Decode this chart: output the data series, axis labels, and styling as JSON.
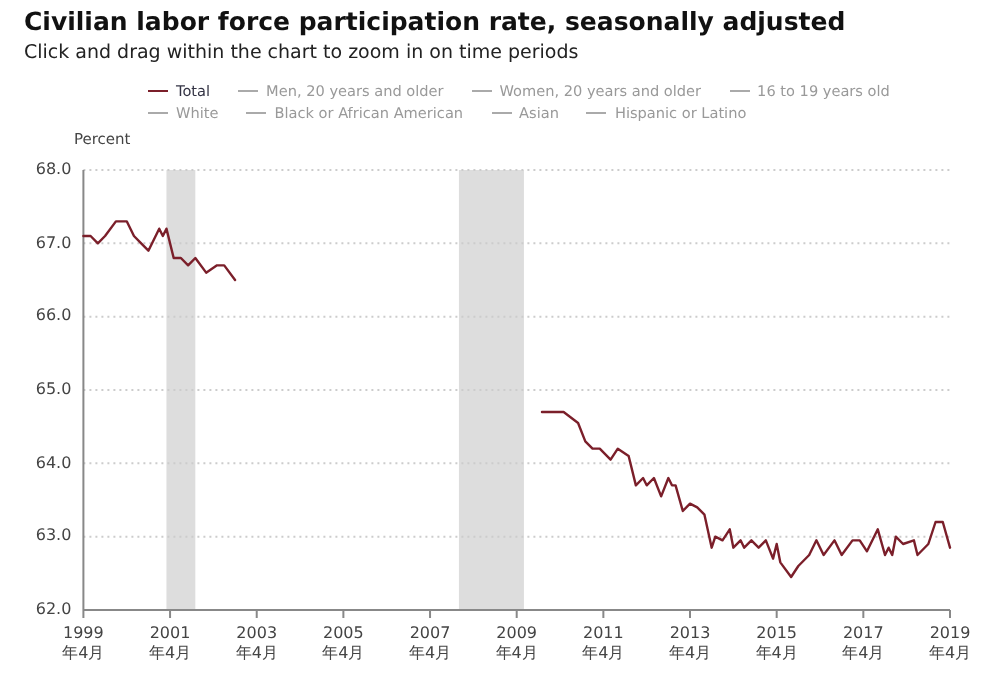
{
  "chart_data": {
    "type": "line",
    "title": "Civilian labor force participation rate, seasonally adjusted",
    "subtitle": "Click and drag within the chart to zoom in on time periods",
    "ylabel": "Percent",
    "xlim": [
      "1999-04",
      "2019-04"
    ],
    "xticks": [
      {
        "value": "1999-04",
        "label": "1999年4月"
      },
      {
        "value": "2001-04",
        "label": "2001年4月"
      },
      {
        "value": "2003-04",
        "label": "2003年4月"
      },
      {
        "value": "2005-04",
        "label": "2005年4月"
      },
      {
        "value": "2007-04",
        "label": "2007年4月"
      },
      {
        "value": "2009-04",
        "label": "2009年4月"
      },
      {
        "value": "2011-04",
        "label": "2011年4月"
      },
      {
        "value": "2013-04",
        "label": "2013年4月"
      },
      {
        "value": "2015-04",
        "label": "2015年4月"
      },
      {
        "value": "2017-04",
        "label": "2017年4月"
      },
      {
        "value": "2019-04",
        "label": "2019年4月"
      }
    ],
    "ylim": [
      62,
      68
    ],
    "yticks": [
      {
        "value": 62,
        "label": "62.0"
      },
      {
        "value": 63,
        "label": "63.0"
      },
      {
        "value": 64,
        "label": "64.0"
      },
      {
        "value": 65,
        "label": "65.0"
      },
      {
        "value": 66,
        "label": "66.0"
      },
      {
        "value": 67,
        "label": "67.0"
      },
      {
        "value": 68,
        "label": "68.0"
      }
    ],
    "grid": "y",
    "legend": "top",
    "marker": "none",
    "line_style": "solid",
    "bands": [
      {
        "axis": "x",
        "from": "2001-03",
        "to": "2001-11",
        "color": "#dddddd"
      },
      {
        "axis": "x",
        "from": "2007-12",
        "to": "2009-06",
        "color": "#dddddd"
      }
    ],
    "series": [
      {
        "name": "Total",
        "color": "#7b1f2a",
        "x": [
          "1999-04",
          "1999-06",
          "1999-08",
          "1999-10",
          "2000-01",
          "2000-04",
          "2000-06",
          "2000-08",
          "2000-10",
          "2001-01",
          "2001-02",
          "2001-03",
          "2001-05",
          "2001-07",
          "2001-09",
          "2001-11",
          "2002-02",
          "2002-05",
          "2002-07",
          "2002-10",
          "2006-01",
          "2009-11",
          "2010-01",
          "2010-05",
          "2010-09",
          "2010-11",
          "2011-01",
          "2011-03",
          "2011-06",
          "2011-08",
          "2011-11",
          "2012-01",
          "2012-03",
          "2012-04",
          "2012-06",
          "2012-08",
          "2012-10",
          "2012-11",
          "2012-12",
          "2013-02",
          "2013-04",
          "2013-06",
          "2013-08",
          "2013-10",
          "2013-11",
          "2014-01",
          "2014-03",
          "2014-04",
          "2014-06",
          "2014-07",
          "2014-09",
          "2014-11",
          "2015-01",
          "2015-03",
          "2015-04",
          "2015-05",
          "2015-08",
          "2015-10",
          "2016-01",
          "2016-03",
          "2016-05",
          "2016-08",
          "2016-10",
          "2017-01",
          "2017-03",
          "2017-05",
          "2017-08",
          "2017-10",
          "2017-11",
          "2017-12",
          "2018-01",
          "2018-03",
          "2018-06",
          "2018-07",
          "2018-10",
          "2018-12",
          "2019-02",
          "2019-04"
        ],
        "values": [
          67.1,
          67.1,
          67.0,
          67.1,
          67.3,
          67.3,
          67.1,
          67.0,
          66.9,
          67.2,
          67.1,
          67.2,
          66.8,
          66.8,
          66.7,
          66.8,
          66.6,
          66.7,
          66.7,
          66.5,
          null,
          64.7,
          64.7,
          64.7,
          64.55,
          64.3,
          64.2,
          64.2,
          64.05,
          64.2,
          64.1,
          63.7,
          63.8,
          63.7,
          63.8,
          63.55,
          63.8,
          63.7,
          63.7,
          63.35,
          63.45,
          63.4,
          63.3,
          62.85,
          63.0,
          62.95,
          63.1,
          62.85,
          62.95,
          62.85,
          62.95,
          62.85,
          62.95,
          62.7,
          62.9,
          62.65,
          62.45,
          62.6,
          62.75,
          62.95,
          62.75,
          62.95,
          62.75,
          62.95,
          62.95,
          62.8,
          63.1,
          62.75,
          62.85,
          62.75,
          63.0,
          62.9,
          62.95,
          62.75,
          62.9,
          63.2,
          63.2,
          62.85
        ]
      },
      {
        "name": "Men, 20 years and older",
        "color": "#aaaaaa"
      },
      {
        "name": "Women, 20 years and older",
        "color": "#aaaaaa"
      },
      {
        "name": "16 to 19 years old",
        "color": "#aaaaaa"
      },
      {
        "name": "White",
        "color": "#aaaaaa"
      },
      {
        "name": "Black or African American",
        "color": "#aaaaaa"
      },
      {
        "name": "Asian",
        "color": "#aaaaaa"
      },
      {
        "name": "Hispanic or Latino",
        "color": "#aaaaaa"
      }
    ]
  }
}
